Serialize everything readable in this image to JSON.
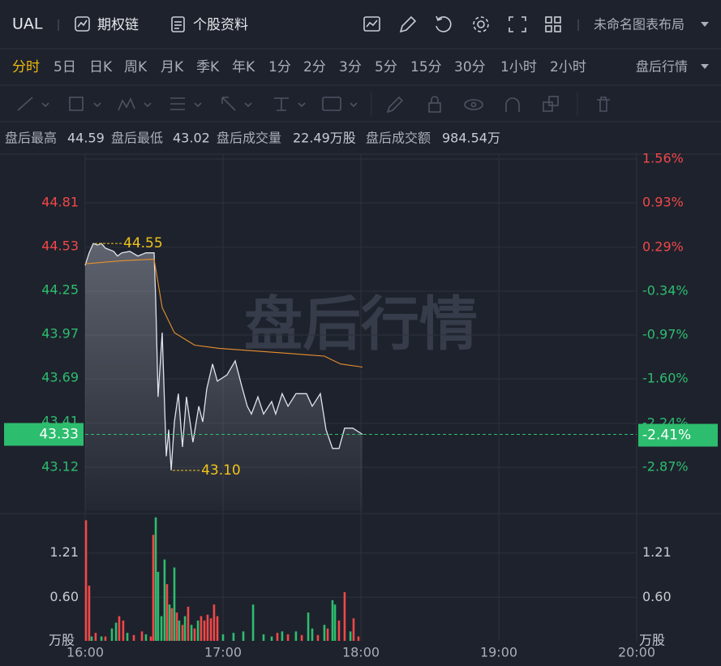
{
  "header": {
    "symbol": "UAL",
    "links": [
      "期权链",
      "个股资料"
    ],
    "layout_name": "未命名图表布局"
  },
  "periods": {
    "items": [
      "分时",
      "5日",
      "日K",
      "周K",
      "月K",
      "季K",
      "年K",
      "1分",
      "2分",
      "3分",
      "5分",
      "15分",
      "30分",
      "1小时",
      "2小时"
    ],
    "active": 0,
    "session": "盘后行情"
  },
  "summary": [
    {
      "label": "盘后最高",
      "value": "44.59"
    },
    {
      "label": "盘后最低",
      "value": "43.02"
    },
    {
      "label": "盘后成交量",
      "value": "22.49万股"
    },
    {
      "label": "盘后成交额",
      "value": "984.54万"
    }
  ],
  "chart_data": [
    {
      "type": "line",
      "watermark": "盘后行情",
      "grid": true,
      "fill": true,
      "xlim": [
        16,
        20
      ],
      "xticks": [
        {
          "value": 16,
          "label": "16:00"
        },
        {
          "value": 17,
          "label": "17:00"
        },
        {
          "value": 18,
          "label": "18:00"
        },
        {
          "value": 19,
          "label": "19:00"
        },
        {
          "value": 20,
          "label": "20:00"
        }
      ],
      "ylim": [
        42.84,
        45.09
      ],
      "yticks": [
        44.81,
        44.53,
        44.25,
        43.97,
        43.69,
        43.41,
        43.12
      ],
      "y2lim": [
        -3.5,
        1.56
      ],
      "y2ticks": [
        {
          "value": 1.56,
          "label": "1.56%"
        },
        {
          "value": 0.93,
          "label": "0.93%"
        },
        {
          "value": 0.29,
          "label": "0.29%"
        },
        {
          "value": -0.34,
          "label": "-0.34%"
        },
        {
          "value": -0.97,
          "label": "-0.97%"
        },
        {
          "value": -1.6,
          "label": "-1.60%"
        },
        {
          "value": -2.24,
          "label": "-2.24%"
        },
        {
          "value": -2.87,
          "label": "-2.87%"
        }
      ],
      "up_color": "#f04848",
      "down_color": "#2dbd6e",
      "series": [
        {
          "color": "#dfe3ea",
          "x": [
            16.0,
            16.029,
            16.059,
            16.088,
            16.118,
            16.147,
            16.206,
            16.235,
            16.265,
            16.324,
            16.382,
            16.441,
            16.5,
            16.512,
            16.529,
            16.559,
            16.588,
            16.606,
            16.624,
            16.647,
            16.676,
            16.706,
            16.735,
            16.782,
            16.824,
            16.853,
            16.882,
            16.924,
            16.959,
            17.029,
            17.088,
            17.135,
            17.176,
            17.206,
            17.253,
            17.294,
            17.353,
            17.382,
            17.429,
            17.471,
            17.529,
            17.606,
            17.647,
            17.706,
            17.747,
            17.794,
            17.841,
            17.882,
            17.941,
            18.012
          ],
          "values": [
            44.41,
            44.49,
            44.55,
            44.54,
            44.55,
            44.52,
            44.5,
            44.47,
            44.49,
            44.5,
            44.47,
            44.49,
            44.49,
            44.19,
            43.57,
            43.98,
            43.19,
            43.36,
            43.1,
            43.41,
            43.59,
            43.25,
            43.57,
            43.28,
            43.51,
            43.41,
            43.62,
            43.78,
            43.67,
            43.71,
            43.8,
            43.64,
            43.51,
            43.46,
            43.57,
            43.46,
            43.54,
            43.46,
            43.59,
            43.51,
            43.59,
            43.59,
            43.51,
            43.59,
            43.36,
            43.24,
            43.24,
            43.37,
            43.37,
            43.33
          ]
        },
        {
          "color": "#e8912d",
          "x": [
            16.0,
            16.265,
            16.5,
            16.559,
            16.647,
            16.794,
            16.971,
            17.441,
            17.735,
            17.853,
            18.012
          ],
          "values": [
            44.42,
            44.44,
            44.45,
            44.14,
            43.98,
            43.9,
            43.88,
            43.85,
            43.83,
            43.78,
            43.76
          ]
        }
      ],
      "annotations": [
        {
          "x": 16.059,
          "value": 44.55
        },
        {
          "x": 16.624,
          "value": 43.1,
          "label": "43.10"
        }
      ],
      "annotation_color": "#f0c419",
      "last_price": 43.33,
      "last_change": {
        "value": -2.41,
        "label": "-2.41%"
      }
    },
    {
      "type": "bar",
      "unit": "万股",
      "xlim": [
        16,
        20
      ],
      "ylim": [
        0,
        1.72
      ],
      "yticks": [
        1.21,
        {
          "value": 0.6,
          "label": "0.60"
        }
      ],
      "x": [
        16.006,
        16.029,
        16.047,
        16.076,
        16.118,
        16.147,
        16.194,
        16.224,
        16.247,
        16.276,
        16.306,
        16.353,
        16.412,
        16.441,
        16.476,
        16.494,
        16.512,
        16.529,
        16.553,
        16.576,
        16.594,
        16.612,
        16.629,
        16.647,
        16.665,
        16.682,
        16.706,
        16.724,
        16.747,
        16.771,
        16.794,
        16.818,
        16.841,
        16.865,
        16.888,
        16.912,
        16.935,
        16.959,
        17.0,
        17.076,
        17.147,
        17.218,
        17.294,
        17.353,
        17.394,
        17.429,
        17.471,
        17.529,
        17.571,
        17.618,
        17.647,
        17.688,
        17.735,
        17.759,
        17.794,
        17.812,
        17.841,
        17.882,
        17.924,
        17.947,
        17.982
      ],
      "values": [
        1.66,
        0.76,
        0.06,
        0.11,
        0.06,
        0.06,
        0.17,
        0.25,
        0.34,
        0.28,
        0.11,
        0.08,
        0.13,
        0.09,
        0.06,
        1.46,
        1.7,
        0.95,
        0.34,
        1.12,
        0.78,
        0.5,
        0.45,
        1.01,
        0.39,
        0.28,
        0.22,
        0.34,
        0.47,
        0.22,
        0.17,
        0.28,
        0.34,
        0.28,
        0.36,
        0.31,
        0.5,
        0.34,
        0.09,
        0.11,
        0.13,
        0.5,
        0.09,
        0.06,
        0.11,
        0.13,
        0.09,
        0.13,
        0.08,
        0.39,
        0.17,
        0.08,
        0.22,
        0.17,
        0.56,
        0.5,
        0.28,
        0.67,
        0.13,
        0.31,
        0.06
      ],
      "colors": [
        "#f04848",
        "#f04848",
        "#2dbd6e",
        "#f04848",
        "#2dbd6e",
        "#f04848",
        "#2dbd6e",
        "#2dbd6e",
        "#f04848",
        "#f04848",
        "#2dbd6e",
        "#f04848",
        "#f04848",
        "#2dbd6e",
        "#f04848",
        "#f04848",
        "#2dbd6e",
        "#2dbd6e",
        "#2dbd6e",
        "#2dbd6e",
        "#f04848",
        "#2dbd6e",
        "#f04848",
        "#2dbd6e",
        "#f04848",
        "#2dbd6e",
        "#f04848",
        "#2dbd6e",
        "#f04848",
        "#2dbd6e",
        "#f04848",
        "#2dbd6e",
        "#f04848",
        "#f04848",
        "#f04848",
        "#f04848",
        "#f04848",
        "#f04848",
        "#2dbd6e",
        "#2dbd6e",
        "#2dbd6e",
        "#2dbd6e",
        "#2dbd6e",
        "#2dbd6e",
        "#f04848",
        "#2dbd6e",
        "#f04848",
        "#2dbd6e",
        "#f04848",
        "#2dbd6e",
        "#2dbd6e",
        "#f04848",
        "#2dbd6e",
        "#f04848",
        "#2dbd6e",
        "#2dbd6e",
        "#f04848",
        "#f04848",
        "#2dbd6e",
        "#f04848",
        "#f04848"
      ]
    }
  ]
}
